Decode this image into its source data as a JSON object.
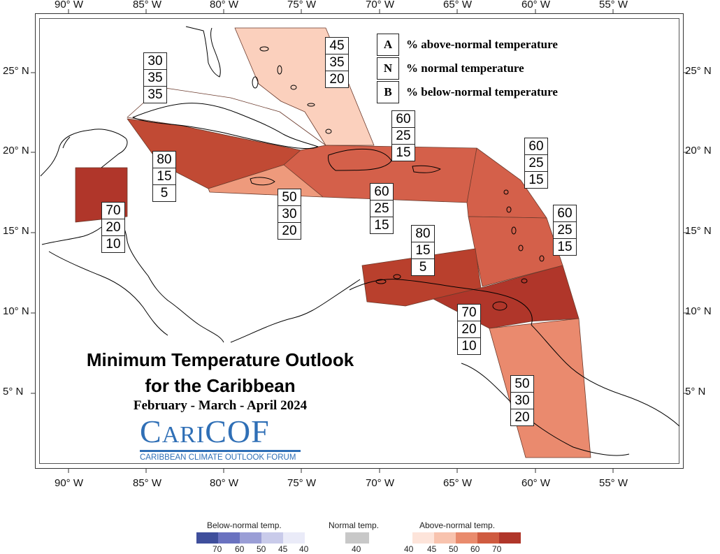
{
  "axes": {
    "lon_labels": [
      "90° W",
      "85° W",
      "80° W",
      "75° W",
      "70° W",
      "65° W",
      "60° W",
      "55° W"
    ],
    "lat_labels": [
      "25° N",
      "20° N",
      "15° N",
      "10° N",
      "5° N"
    ]
  },
  "key": {
    "rows": [
      {
        "letter": "A",
        "text": "% above-normal temperature"
      },
      {
        "letter": "N",
        "text": "% normal temperature"
      },
      {
        "letter": "B",
        "text": "% below-normal temperature"
      }
    ]
  },
  "forecast_boxes": [
    {
      "values": [
        "30",
        "35",
        "35"
      ]
    },
    {
      "values": [
        "45",
        "35",
        "20"
      ]
    },
    {
      "values": [
        "60",
        "25",
        "15"
      ]
    },
    {
      "values": [
        "80",
        "15",
        "5"
      ]
    },
    {
      "values": [
        "60",
        "25",
        "15"
      ]
    },
    {
      "values": [
        "50",
        "30",
        "20"
      ]
    },
    {
      "values": [
        "60",
        "25",
        "15"
      ]
    },
    {
      "values": [
        "70",
        "20",
        "10"
      ]
    },
    {
      "values": [
        "60",
        "25",
        "15"
      ]
    },
    {
      "values": [
        "80",
        "15",
        "5"
      ]
    },
    {
      "values": [
        "70",
        "20",
        "10"
      ]
    },
    {
      "values": [
        "50",
        "30",
        "20"
      ]
    }
  ],
  "title": {
    "line1": "Minimum Temperature Outlook",
    "line2": "for the Caribbean",
    "period": "February - March - April 2024"
  },
  "logo": {
    "word_c": "C",
    "word_ari": "ARI",
    "word_cof": "COF",
    "tagline": "CARIBBEAN CLIMATE OUTLOOK FORUM"
  },
  "colorbar": {
    "below_title": "Below-normal temp.",
    "normal_title": "Normal temp.",
    "above_title": "Above-normal temp.",
    "below_labels": [
      "70",
      "60",
      "50",
      "45",
      "40"
    ],
    "normal_labels": [
      "40"
    ],
    "above_labels": [
      "40",
      "45",
      "50",
      "60",
      "70"
    ],
    "below_colors": [
      "#3f4f9c",
      "#6a72c0",
      "#9a9ed6",
      "#c9cbea",
      "#eaebf8"
    ],
    "normal_color": "#c8c8c8",
    "above_colors": [
      "#fde4da",
      "#f8c3ae",
      "#e98b6d",
      "#cf5b40",
      "#b0362a"
    ]
  }
}
